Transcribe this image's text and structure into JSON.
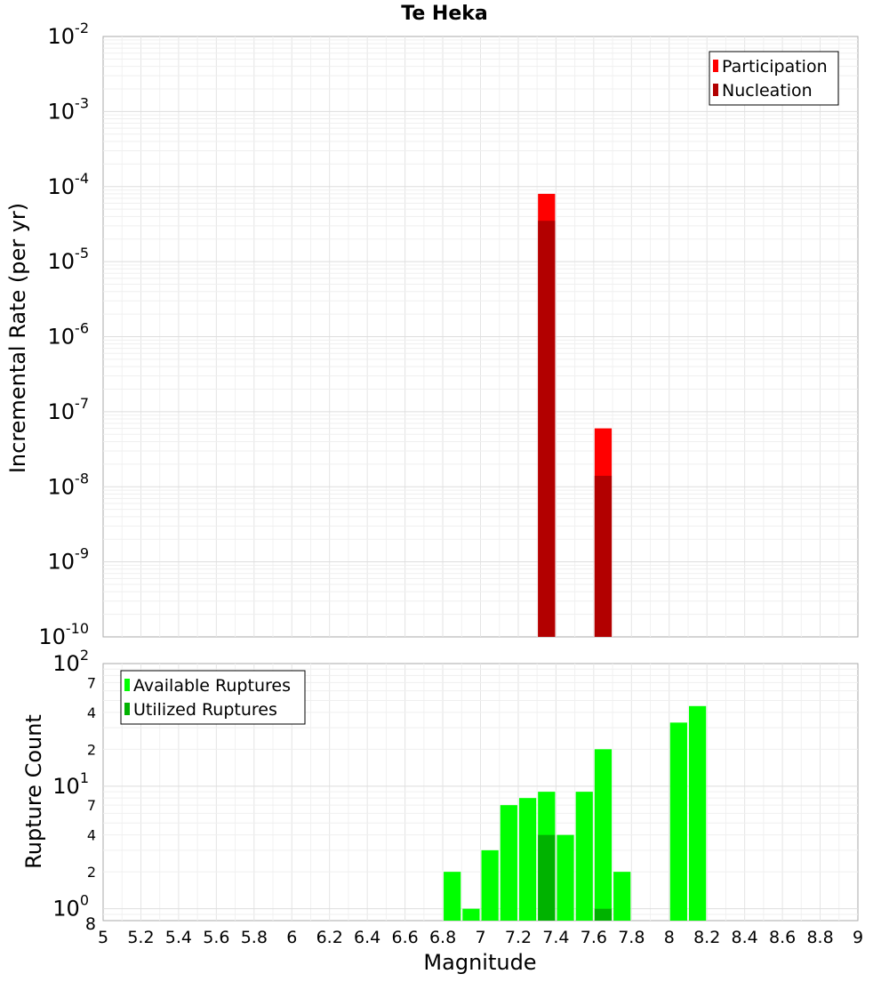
{
  "chart_data": {
    "title": "Te Heka",
    "type": "bar",
    "xlabel": "Magnitude",
    "xlim": [
      5,
      9
    ],
    "x_ticks": [
      "5",
      "5.2",
      "5.4",
      "5.6",
      "5.8",
      "6",
      "6.2",
      "6.4",
      "6.6",
      "6.8",
      "7",
      "7.2",
      "7.4",
      "7.6",
      "7.8",
      "8",
      "8.2",
      "8.4",
      "8.6",
      "8.8",
      "9"
    ],
    "bin_width": 0.1,
    "grid": true,
    "panels": [
      {
        "id": "rate",
        "ylabel": "Incremental Rate (per yr)",
        "yscale": "log",
        "ylim": [
          1e-10,
          0.01
        ],
        "legend": {
          "position": "top-right"
        },
        "series": [
          {
            "name": "Participation",
            "color": "#ff0000",
            "x": [
              7.35,
              7.65
            ],
            "values": [
              8e-05,
              6e-08
            ]
          },
          {
            "name": "Nucleation",
            "color": "#b20000",
            "x": [
              7.35,
              7.65
            ],
            "values": [
              3.5e-05,
              1.4e-08
            ]
          }
        ]
      },
      {
        "id": "count",
        "ylabel": "Rupture Count",
        "yscale": "log",
        "ylim": [
          0.8,
          100
        ],
        "legend": {
          "position": "top-left"
        },
        "series": [
          {
            "name": "Available Ruptures",
            "color": "#00ff00",
            "x": [
              6.85,
              6.95,
              7.05,
              7.15,
              7.25,
              7.35,
              7.45,
              7.55,
              7.65,
              7.75,
              8.05,
              8.15
            ],
            "values": [
              2,
              1,
              3,
              7,
              8,
              9,
              4,
              9,
              20,
              2,
              33,
              45
            ]
          },
          {
            "name": "Utilized Ruptures",
            "color": "#00b200",
            "x": [
              7.35,
              7.65
            ],
            "values": [
              4,
              1
            ]
          }
        ]
      }
    ]
  }
}
